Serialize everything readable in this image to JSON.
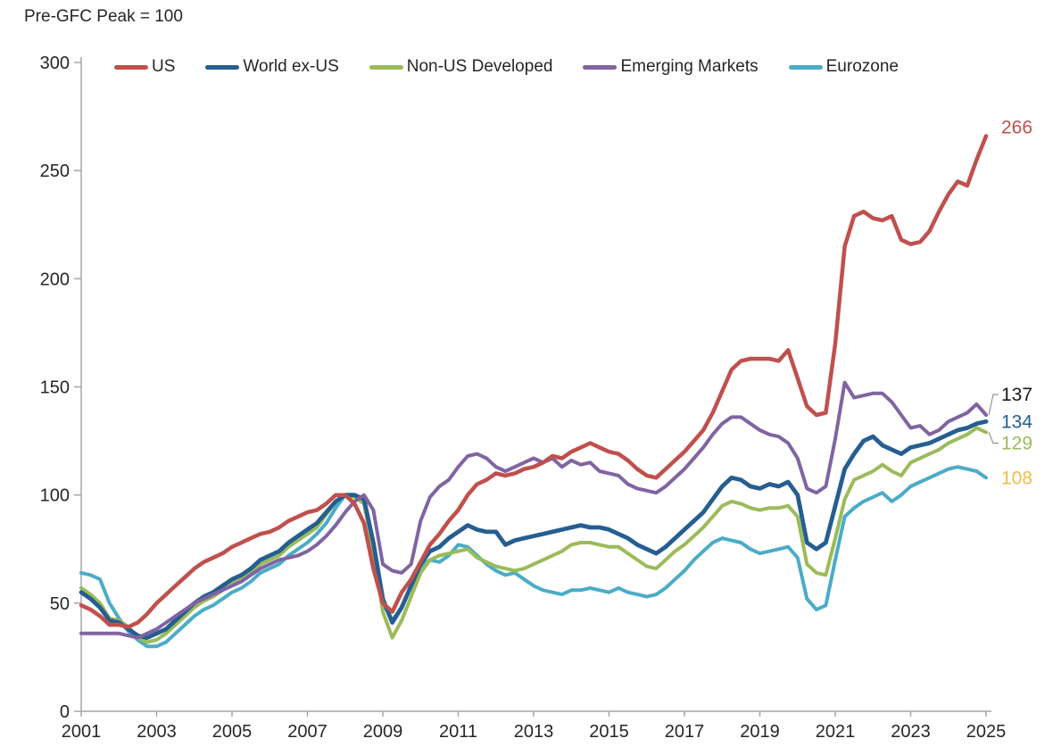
{
  "chart_data": {
    "type": "line",
    "title": "Pre-GFC Peak = 100",
    "grid": false,
    "legend_position": "top-inside",
    "x_axis": {
      "start": 2001,
      "step": 0.25,
      "end": 2025,
      "tick_labels": [
        2001,
        2003,
        2005,
        2007,
        2009,
        2011,
        2013,
        2015,
        2017,
        2019,
        2021,
        2023,
        2025
      ]
    },
    "y_axis": {
      "min": 0,
      "max": 300,
      "ticks": [
        0,
        50,
        100,
        150,
        200,
        250,
        300
      ]
    },
    "axis_color": "#A6A6A6",
    "text_color": "#262626",
    "draw_order": [
      4,
      2,
      1,
      3,
      0
    ],
    "series": [
      {
        "name": "US",
        "color": "#C0504D",
        "line_width": 4.5,
        "end_label": {
          "text": "266",
          "color": "#C0504D",
          "at_value": 270,
          "callout": false
        },
        "values": [
          49,
          47,
          44,
          40,
          40,
          39,
          41,
          45,
          50,
          54,
          58,
          62,
          66,
          69,
          71,
          73,
          76,
          78,
          80,
          82,
          83,
          85,
          88,
          90,
          92,
          93,
          96,
          100,
          100,
          96,
          87,
          66,
          50,
          46,
          55,
          61,
          69,
          77,
          82,
          88,
          93,
          100,
          105,
          107,
          110,
          109,
          110,
          112,
          113,
          115,
          118,
          117,
          120,
          122,
          124,
          122,
          120,
          119,
          116,
          112,
          109,
          108,
          112,
          116,
          120,
          125,
          130,
          138,
          148,
          158,
          162,
          163,
          163,
          163,
          162,
          167,
          154,
          141,
          137,
          138,
          170,
          215,
          229,
          231,
          228,
          227,
          229,
          218,
          216,
          217,
          222,
          231,
          239,
          245,
          243,
          255,
          266
        ]
      },
      {
        "name": "World ex-US",
        "color": "#255E91",
        "line_width": 4.8,
        "end_label": {
          "text": "134",
          "color": "#255E91",
          "at_value": 134,
          "callout": false
        },
        "values": [
          55,
          52,
          48,
          42,
          41,
          38,
          35,
          34,
          36,
          38,
          42,
          46,
          50,
          53,
          55,
          58,
          61,
          63,
          66,
          70,
          72,
          74,
          78,
          81,
          84,
          87,
          92,
          97,
          100,
          100,
          98,
          78,
          52,
          41,
          48,
          58,
          68,
          74,
          76,
          80,
          83,
          86,
          84,
          83,
          83,
          77,
          79,
          80,
          81,
          82,
          83,
          84,
          85,
          86,
          85,
          85,
          84,
          82,
          80,
          77,
          75,
          73,
          76,
          80,
          84,
          88,
          92,
          98,
          104,
          108,
          107,
          104,
          103,
          105,
          104,
          106,
          100,
          78,
          75,
          78,
          95,
          112,
          119,
          125,
          127,
          123,
          121,
          119,
          122,
          123,
          124,
          126,
          128,
          130,
          131,
          133,
          134
        ]
      },
      {
        "name": "Non-US Developed",
        "color": "#9BBB59",
        "line_width": 4,
        "end_label": {
          "text": "129",
          "color": "#9BBB59",
          "at_value": 124,
          "callout": true
        },
        "values": [
          57,
          54,
          50,
          43,
          42,
          39,
          34,
          32,
          33,
          36,
          40,
          44,
          48,
          51,
          53,
          56,
          59,
          61,
          64,
          68,
          70,
          72,
          76,
          79,
          82,
          85,
          91,
          97,
          100,
          99,
          96,
          74,
          46,
          34,
          42,
          53,
          64,
          70,
          72,
          73,
          74,
          75,
          71,
          69,
          67,
          66,
          65,
          66,
          68,
          70,
          72,
          74,
          77,
          78,
          78,
          77,
          76,
          76,
          73,
          70,
          67,
          66,
          70,
          74,
          77,
          81,
          85,
          90,
          95,
          97,
          96,
          94,
          93,
          94,
          94,
          95,
          90,
          68,
          64,
          63,
          80,
          98,
          107,
          109,
          111,
          114,
          111,
          109,
          115,
          117,
          119,
          121,
          124,
          126,
          128,
          131,
          129
        ]
      },
      {
        "name": "Emerging Markets",
        "color": "#8064A2",
        "line_width": 4,
        "end_label": {
          "text": "137",
          "color": "#1A1A1A",
          "at_value": 146.5,
          "callout": true
        },
        "values": [
          36,
          36,
          36,
          36,
          36,
          35,
          34,
          36,
          38,
          41,
          44,
          47,
          50,
          52,
          54,
          56,
          58,
          60,
          63,
          66,
          68,
          70,
          71,
          72,
          74,
          77,
          81,
          86,
          92,
          97,
          100,
          93,
          68,
          65,
          64,
          68,
          88,
          99,
          104,
          107,
          113,
          118,
          119,
          117,
          113,
          111,
          113,
          115,
          117,
          115,
          117,
          113,
          116,
          114,
          115,
          111,
          110,
          109,
          105,
          103,
          102,
          101,
          104,
          108,
          112,
          117,
          122,
          128,
          133,
          136,
          136,
          133,
          130,
          128,
          127,
          124,
          117,
          103,
          101,
          104,
          126,
          152,
          145,
          146,
          147,
          147,
          143,
          137,
          131,
          132,
          128,
          130,
          134,
          136,
          138,
          142,
          137
        ]
      },
      {
        "name": "Eurozone",
        "color": "#4BACC6",
        "line_width": 4,
        "end_label": {
          "text": "108",
          "color": "#F0BE45",
          "at_value": 108,
          "callout": false
        },
        "values": [
          64,
          63,
          61,
          50,
          43,
          37,
          33,
          30,
          30,
          32,
          36,
          40,
          44,
          47,
          49,
          52,
          55,
          57,
          60,
          64,
          66,
          68,
          72,
          75,
          78,
          82,
          87,
          94,
          100,
          100,
          96,
          76,
          50,
          42,
          48,
          58,
          67,
          70,
          69,
          72,
          77,
          76,
          72,
          68,
          65,
          63,
          64,
          61,
          58,
          56,
          55,
          54,
          56,
          56,
          57,
          56,
          55,
          57,
          55,
          54,
          53,
          54,
          57,
          61,
          65,
          70,
          74,
          78,
          80,
          79,
          78,
          75,
          73,
          74,
          75,
          76,
          71,
          52,
          47,
          49,
          70,
          90,
          94,
          97,
          99,
          101,
          97,
          100,
          104,
          106,
          108,
          110,
          112,
          113,
          112,
          111,
          108
        ]
      }
    ]
  }
}
